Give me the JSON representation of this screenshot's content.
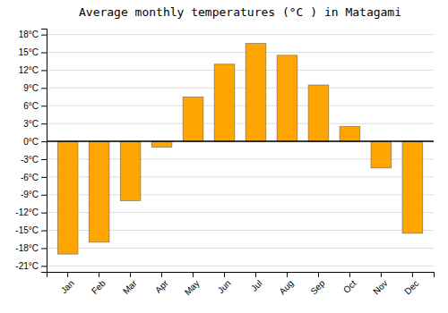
{
  "chart_data": {
    "type": "bar",
    "title": "Average monthly temperatures (°C ) in Matagami",
    "categories": [
      "Jan",
      "Feb",
      "Mar",
      "Apr",
      "May",
      "Jun",
      "Jul",
      "Aug",
      "Sep",
      "Oct",
      "Nov",
      "Dec"
    ],
    "values": [
      -19.0,
      -17.0,
      -10.0,
      -1.0,
      7.5,
      13.0,
      16.5,
      14.5,
      9.5,
      2.5,
      -4.5,
      -15.5
    ],
    "color": "#FFA500",
    "ylim": [
      -22,
      19
    ],
    "yticks": [
      {
        "value": -21,
        "label": "-21°C"
      },
      {
        "value": -18,
        "label": "-18°C"
      },
      {
        "value": -15,
        "label": "-15°C"
      },
      {
        "value": -12,
        "label": "-12°C"
      },
      {
        "value": -9,
        "label": "-9°C"
      },
      {
        "value": -6,
        "label": "-6°C"
      },
      {
        "value": -3,
        "label": "-3°C"
      },
      {
        "value": 0,
        "label": "0°C"
      },
      {
        "value": 3,
        "label": "3°C"
      },
      {
        "value": 6,
        "label": "6°C"
      },
      {
        "value": 9,
        "label": "9°C"
      },
      {
        "value": 12,
        "label": "12°C"
      },
      {
        "value": 15,
        "label": "15°C"
      },
      {
        "value": 18,
        "label": "18°C"
      }
    ],
    "grid": true
  }
}
